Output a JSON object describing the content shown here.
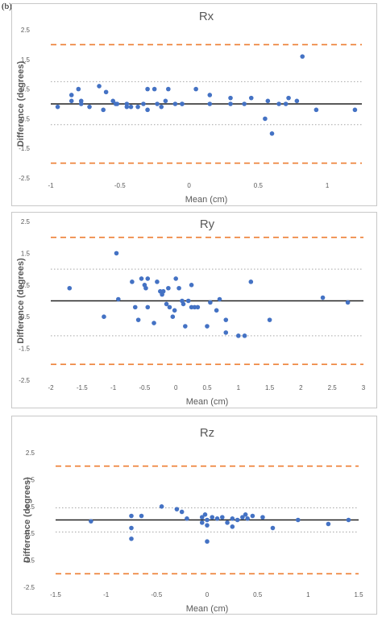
{
  "panel_tag": "(b)",
  "colors": {
    "points": "#4472c4",
    "mean_line": "#222222",
    "loa_line": "#ed7d31",
    "ci_line": "#a6a6a6",
    "text": "#595959",
    "border": "#c8c8c8"
  },
  "chart_data": [
    {
      "type": "scatter",
      "title": "Rx",
      "xlabel": "Mean (cm)",
      "ylabel": "Difference (degrees)",
      "xlim": [
        -1,
        1.25
      ],
      "ylim": [
        -2.5,
        2.5
      ],
      "xticks": [
        -1,
        -0.5,
        0,
        0.5,
        1
      ],
      "xtick_labels": [
        "-1",
        "-0.5",
        "0",
        "0.5",
        "1"
      ],
      "yticks": [
        2.5,
        1.5,
        0.5,
        -0.5,
        -1.5,
        -2.5
      ],
      "ytick_labels": [
        "2.5",
        "1.5",
        "0.5",
        "-0.5",
        "-1.5",
        "-2.5"
      ],
      "grid": false,
      "mean_line": 0,
      "limits_of_agreement": [
        2.0,
        -2.0
      ],
      "confidence_lines": [
        0.75,
        -0.7
      ],
      "x": [
        -0.95,
        -0.85,
        -0.85,
        -0.8,
        -0.78,
        -0.78,
        -0.72,
        -0.65,
        -0.62,
        -0.6,
        -0.55,
        -0.53,
        -0.52,
        -0.45,
        -0.45,
        -0.42,
        -0.37,
        -0.33,
        -0.3,
        -0.3,
        -0.25,
        -0.23,
        -0.2,
        -0.17,
        -0.15,
        -0.1,
        -0.05,
        -0.05,
        0.05,
        0.15,
        0.15,
        0.3,
        0.3,
        0.4,
        0.45,
        0.55,
        0.57,
        0.6,
        0.65,
        0.7,
        0.72,
        0.78,
        0.82,
        0.92,
        1.2
      ],
      "y": [
        -0.1,
        0.1,
        0.3,
        0.5,
        0.0,
        0.1,
        -0.1,
        0.6,
        -0.2,
        0.4,
        0.1,
        0.0,
        0.0,
        -0.1,
        0.0,
        -0.1,
        -0.1,
        0.0,
        0.5,
        -0.2,
        0.5,
        0.0,
        -0.1,
        0.1,
        0.5,
        0.0,
        0.0,
        0.0,
        0.5,
        0.3,
        0.0,
        0.2,
        0.0,
        0.0,
        0.2,
        -0.5,
        0.1,
        -1.0,
        0.0,
        0.0,
        0.2,
        0.1,
        1.6,
        -0.2,
        -0.2
      ]
    },
    {
      "type": "scatter",
      "title": "Ry",
      "xlabel": "Mean (cm)",
      "ylabel": "Difference (degrees)",
      "xlim": [
        -2,
        3
      ],
      "ylim": [
        -2.5,
        2.5
      ],
      "xticks": [
        -2,
        -1.5,
        -1,
        -0.5,
        0,
        0.5,
        1,
        1.5,
        2,
        2.5,
        3
      ],
      "xtick_labels": [
        "-2",
        "-1.5",
        "-1",
        "-0.5",
        "0",
        "0.5",
        "1",
        "1.5",
        "2",
        "2.5",
        "3"
      ],
      "yticks": [
        2.5,
        1.5,
        0.5,
        -0.5,
        -1.5,
        -2.5
      ],
      "ytick_labels": [
        "2.5",
        "1.5",
        "0.5",
        "-0.5",
        "-1.5",
        "-2.5"
      ],
      "grid": false,
      "mean_line": 0,
      "limits_of_agreement": [
        2.0,
        -2.0
      ],
      "confidence_lines": [
        1.0,
        -1.1
      ],
      "x": [
        -1.7,
        -1.15,
        -0.95,
        -0.92,
        -0.7,
        -0.65,
        -0.6,
        -0.55,
        -0.5,
        -0.48,
        -0.45,
        -0.45,
        -0.35,
        -0.3,
        -0.25,
        -0.22,
        -0.2,
        -0.15,
        -0.12,
        -0.1,
        -0.05,
        -0.02,
        0.0,
        0.05,
        0.1,
        0.12,
        0.15,
        0.2,
        0.25,
        0.25,
        0.3,
        0.35,
        0.5,
        0.55,
        0.65,
        0.7,
        0.8,
        0.8,
        1.0,
        1.1,
        1.2,
        1.5,
        2.35,
        2.75
      ],
      "y": [
        0.4,
        -0.5,
        1.5,
        0.05,
        0.6,
        -0.2,
        -0.6,
        0.7,
        0.5,
        0.4,
        0.7,
        -0.2,
        -0.7,
        0.6,
        0.3,
        0.2,
        0.3,
        -0.1,
        0.4,
        -0.2,
        -0.5,
        -0.3,
        0.7,
        0.4,
        0.0,
        -0.1,
        -0.8,
        0.0,
        -0.2,
        0.5,
        -0.2,
        -0.2,
        -0.8,
        -0.05,
        -0.3,
        0.05,
        -1.0,
        -0.6,
        -1.1,
        -1.1,
        0.6,
        -0.6,
        0.1,
        -0.05
      ]
    },
    {
      "type": "scatter",
      "title": "Rz",
      "xlabel": "Mean (cm)",
      "ylabel": "Difference (degrees)",
      "xlim": [
        -1.5,
        1.5
      ],
      "ylim": [
        -2.5,
        2.5
      ],
      "xticks": [
        -1.5,
        -1,
        -0.5,
        0,
        0.5,
        1,
        1.5
      ],
      "xtick_labels": [
        "-1.5",
        "-1",
        "-0.5",
        "0",
        "0.5",
        "1",
        "1.5"
      ],
      "yticks": [
        2.5,
        1.5,
        0.5,
        -0.5,
        -1.5,
        -2.5
      ],
      "ytick_labels": [
        "2.5",
        "1.5",
        "0.5",
        "-0.5",
        "-1.5",
        "-2.5"
      ],
      "grid": false,
      "mean_line": 0,
      "limits_of_agreement": [
        2.0,
        -2.0
      ],
      "confidence_lines": [
        0.45,
        -0.45
      ],
      "x": [
        -1.15,
        -0.75,
        -0.75,
        -0.75,
        -0.65,
        -0.45,
        -0.3,
        -0.25,
        -0.2,
        -0.05,
        -0.05,
        -0.02,
        0.0,
        0.0,
        0.0,
        0.05,
        0.1,
        0.15,
        0.2,
        0.25,
        0.25,
        0.3,
        0.35,
        0.38,
        0.4,
        0.45,
        0.55,
        0.65,
        0.9,
        1.2,
        1.4
      ],
      "y": [
        -0.05,
        0.15,
        -0.3,
        -0.7,
        0.15,
        0.5,
        0.4,
        0.3,
        0.05,
        0.1,
        -0.1,
        0.2,
        0.0,
        -0.2,
        -0.8,
        0.1,
        0.05,
        0.1,
        -0.1,
        0.05,
        -0.25,
        0.0,
        0.1,
        0.2,
        0.05,
        0.15,
        0.1,
        -0.3,
        0.0,
        -0.15,
        0.0
      ]
    }
  ]
}
